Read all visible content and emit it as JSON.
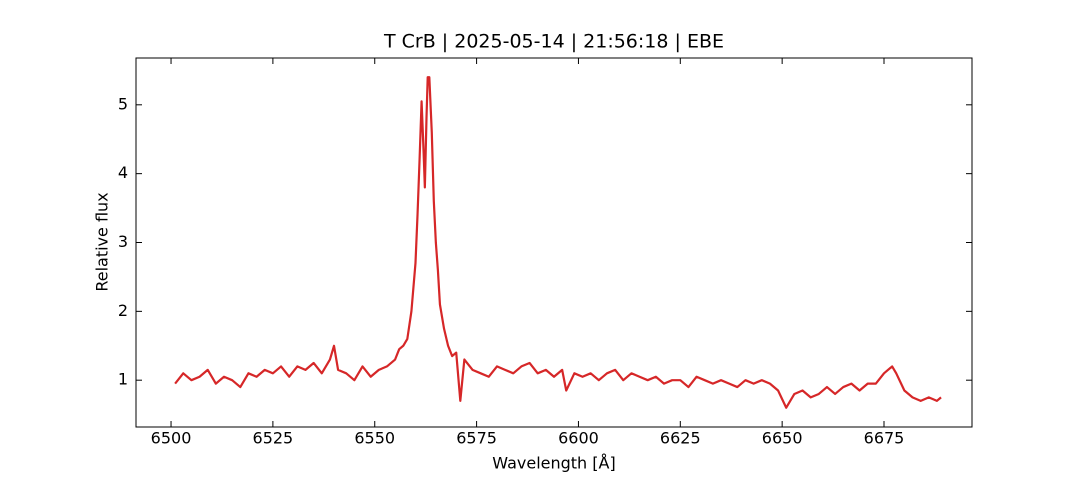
{
  "chart_data": {
    "type": "line",
    "title": "T CrB | 2025-05-14 | 21:56:18 | EBE",
    "x_label": "Wavelength [Å]",
    "y_label": "Relative flux",
    "xlim": [
      6491.4,
      6696.6
    ],
    "ylim": [
      0.32,
      5.68
    ],
    "xticks": [
      6500,
      6525,
      6550,
      6575,
      6600,
      6625,
      6650,
      6675
    ],
    "yticks": [
      1,
      2,
      3,
      4,
      5
    ],
    "x": [
      6501,
      6503,
      6505,
      6507,
      6509,
      6511,
      6513,
      6515,
      6517,
      6519,
      6521,
      6523,
      6525,
      6527,
      6529,
      6531,
      6533,
      6535,
      6537,
      6539,
      6540,
      6541,
      6543,
      6545,
      6547,
      6549,
      6551,
      6553,
      6555,
      6556,
      6557,
      6558,
      6559,
      6560,
      6560.5,
      6561,
      6561.5,
      6562,
      6562.3,
      6562.7,
      6563,
      6563.4,
      6564,
      6564.5,
      6565,
      6565.5,
      6566,
      6567,
      6568,
      6569,
      6570,
      6571,
      6572,
      6574,
      6576,
      6578,
      6580,
      6582,
      6584,
      6586,
      6588,
      6590,
      6592,
      6594,
      6596,
      6597,
      6599,
      6601,
      6603,
      6605,
      6607,
      6609,
      6611,
      6613,
      6615,
      6617,
      6619,
      6621,
      6623,
      6625,
      6627,
      6629,
      6631,
      6633,
      6635,
      6637,
      6639,
      6641,
      6643,
      6645,
      6647,
      6649,
      6651,
      6653,
      6655,
      6657,
      6659,
      6661,
      6663,
      6665,
      6667,
      6669,
      6671,
      6673,
      6675,
      6677,
      6678,
      6680,
      6682,
      6684,
      6686,
      6688,
      6689
    ],
    "series": [
      {
        "name": "T CrB",
        "color": "#d62728",
        "values": [
          0.95,
          1.1,
          1.0,
          1.05,
          1.15,
          0.95,
          1.05,
          1.0,
          0.9,
          1.1,
          1.05,
          1.15,
          1.1,
          1.2,
          1.05,
          1.2,
          1.15,
          1.25,
          1.1,
          1.3,
          1.5,
          1.15,
          1.1,
          1.0,
          1.2,
          1.05,
          1.15,
          1.2,
          1.3,
          1.45,
          1.5,
          1.6,
          2.0,
          2.7,
          3.4,
          4.2,
          5.05,
          4.3,
          3.8,
          4.8,
          5.4,
          5.4,
          4.6,
          3.6,
          3.0,
          2.6,
          2.1,
          1.75,
          1.5,
          1.35,
          1.4,
          0.7,
          1.3,
          1.15,
          1.1,
          1.05,
          1.2,
          1.15,
          1.1,
          1.2,
          1.25,
          1.1,
          1.15,
          1.05,
          1.15,
          0.85,
          1.1,
          1.05,
          1.1,
          1.0,
          1.1,
          1.15,
          1.0,
          1.1,
          1.05,
          1.0,
          1.05,
          0.95,
          1.0,
          1.0,
          0.9,
          1.05,
          1.0,
          0.95,
          1.0,
          0.95,
          0.9,
          1.0,
          0.95,
          1.0,
          0.95,
          0.85,
          0.6,
          0.8,
          0.85,
          0.75,
          0.8,
          0.9,
          0.8,
          0.9,
          0.95,
          0.85,
          0.95,
          0.95,
          1.1,
          1.2,
          1.1,
          0.85,
          0.75,
          0.7,
          0.75,
          0.7,
          0.75
        ]
      }
    ]
  }
}
